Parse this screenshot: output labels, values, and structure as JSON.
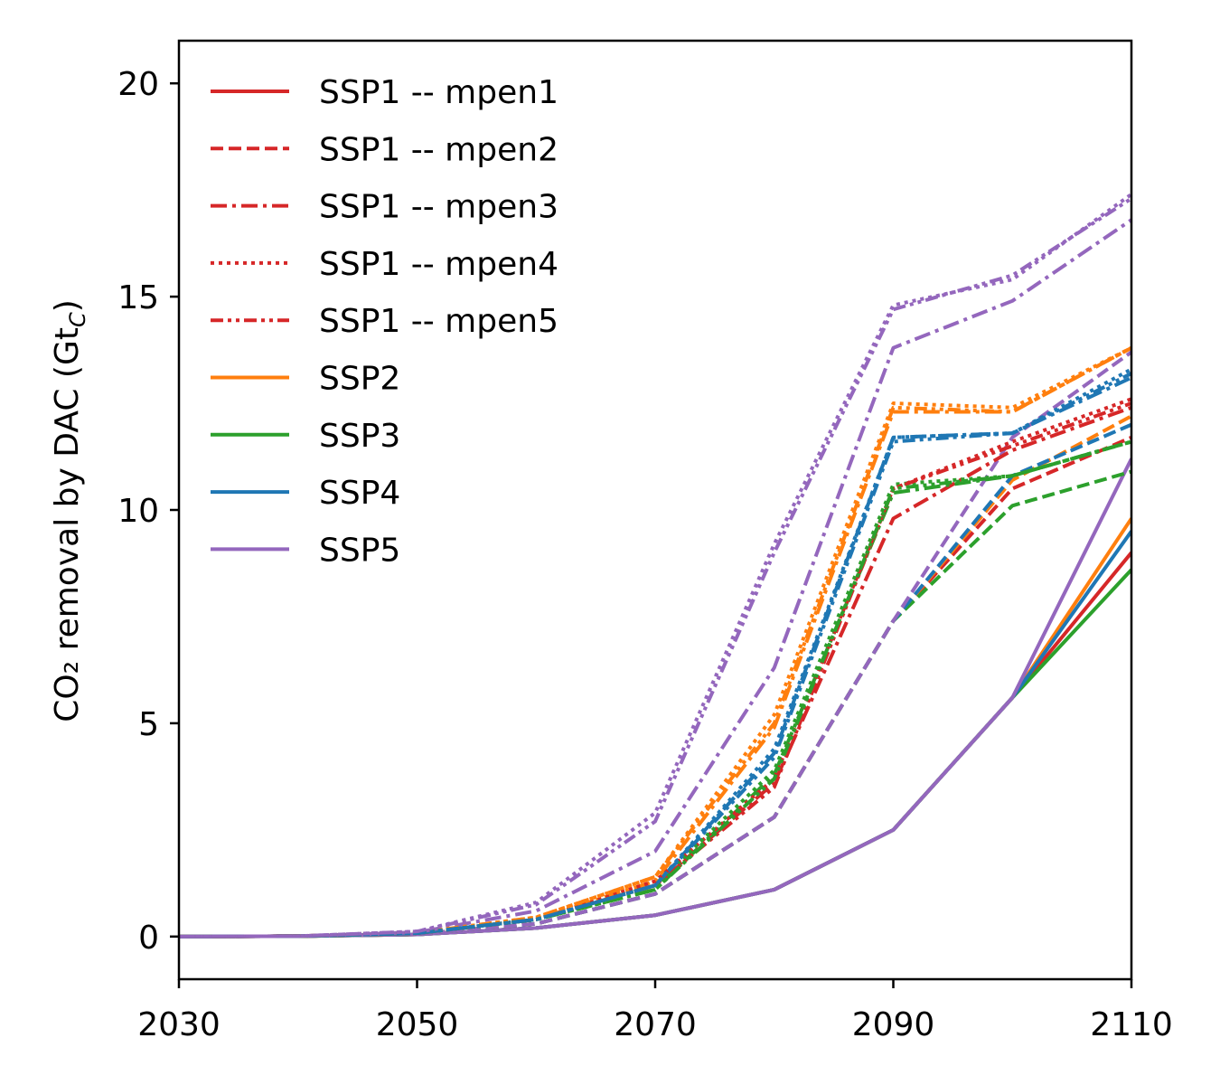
{
  "chart_data": {
    "type": "line",
    "title": "",
    "xlabel": "",
    "ylabel": "CO₂ removal by DAC (Gt",
    "ylabel_sub": "C",
    "ylabel_close": ")",
    "xlim": [
      2030,
      2110
    ],
    "ylim": [
      -1,
      21
    ],
    "xticks": [
      2030,
      2050,
      2070,
      2090,
      2110
    ],
    "yticks": [
      0,
      5,
      10,
      15,
      20
    ],
    "x": [
      2030,
      2040,
      2050,
      2060,
      2070,
      2080,
      2090,
      2100,
      2110
    ],
    "grid": false,
    "legend_position": "top-left",
    "colors": {
      "SSP1": "#d62728",
      "SSP2": "#ff7f0e",
      "SSP3": "#2ca02c",
      "SSP4": "#1f77b4",
      "SSP5": "#9467bd"
    },
    "legend": [
      {
        "label": "SSP1 -- mpen1",
        "color": "#d62728",
        "style": "solid"
      },
      {
        "label": "SSP1 -- mpen2",
        "color": "#d62728",
        "style": "dashed"
      },
      {
        "label": "SSP1 -- mpen3",
        "color": "#d62728",
        "style": "dashdot"
      },
      {
        "label": "SSP1 -- mpen4",
        "color": "#d62728",
        "style": "dotted"
      },
      {
        "label": "SSP1 -- mpen5",
        "color": "#d62728",
        "style": "dashdotdot"
      },
      {
        "label": "SSP2",
        "color": "#ff7f0e",
        "style": "solid"
      },
      {
        "label": "SSP3",
        "color": "#2ca02c",
        "style": "solid"
      },
      {
        "label": "SSP4",
        "color": "#1f77b4",
        "style": "solid"
      },
      {
        "label": "SSP5",
        "color": "#9467bd",
        "style": "solid"
      }
    ],
    "series": [
      {
        "group": "SSP1",
        "style": "solid",
        "values": [
          0,
          0.01,
          0.05,
          0.2,
          0.5,
          1.1,
          2.5,
          5.6,
          9.0
        ]
      },
      {
        "group": "SSP2",
        "style": "solid",
        "values": [
          0,
          0.01,
          0.05,
          0.2,
          0.5,
          1.1,
          2.5,
          5.6,
          9.8
        ]
      },
      {
        "group": "SSP3",
        "style": "solid",
        "values": [
          0,
          0.01,
          0.05,
          0.2,
          0.5,
          1.1,
          2.5,
          5.6,
          8.6
        ]
      },
      {
        "group": "SSP4",
        "style": "solid",
        "values": [
          0,
          0.01,
          0.05,
          0.2,
          0.5,
          1.1,
          2.5,
          5.6,
          9.5
        ]
      },
      {
        "group": "SSP5",
        "style": "solid",
        "values": [
          0,
          0.01,
          0.05,
          0.2,
          0.5,
          1.1,
          2.5,
          5.6,
          11.2
        ]
      },
      {
        "group": "SSP1",
        "style": "dashed",
        "values": [
          0,
          0.01,
          0.06,
          0.3,
          1.0,
          2.8,
          7.4,
          10.5,
          11.7
        ]
      },
      {
        "group": "SSP2",
        "style": "dashed",
        "values": [
          0,
          0.01,
          0.06,
          0.3,
          1.0,
          2.8,
          7.4,
          10.7,
          12.2
        ]
      },
      {
        "group": "SSP3",
        "style": "dashed",
        "values": [
          0,
          0.01,
          0.06,
          0.3,
          1.0,
          2.8,
          7.4,
          10.1,
          10.9
        ]
      },
      {
        "group": "SSP4",
        "style": "dashed",
        "values": [
          0,
          0.01,
          0.06,
          0.3,
          1.0,
          2.8,
          7.4,
          10.8,
          12.0
        ]
      },
      {
        "group": "SSP5",
        "style": "dashed",
        "values": [
          0,
          0.01,
          0.06,
          0.3,
          1.0,
          2.8,
          7.4,
          11.7,
          13.7
        ]
      },
      {
        "group": "SSP1",
        "style": "dashdot",
        "values": [
          0,
          0.01,
          0.08,
          0.4,
          1.2,
          3.6,
          9.8,
          11.4,
          12.4
        ]
      },
      {
        "group": "SSP2",
        "style": "dashdot",
        "values": [
          0,
          0.01,
          0.08,
          0.4,
          1.3,
          4.9,
          12.3,
          12.3,
          13.8
        ]
      },
      {
        "group": "SSP3",
        "style": "dashdot",
        "values": [
          0,
          0.01,
          0.08,
          0.4,
          1.1,
          3.8,
          10.4,
          10.8,
          11.6
        ]
      },
      {
        "group": "SSP4",
        "style": "dashdot",
        "values": [
          0,
          0.01,
          0.08,
          0.4,
          1.2,
          4.3,
          11.7,
          11.8,
          13.1
        ]
      },
      {
        "group": "SSP5",
        "style": "dashdot",
        "values": [
          0,
          0.01,
          0.1,
          0.6,
          2.0,
          6.3,
          13.8,
          14.9,
          16.8
        ]
      },
      {
        "group": "SSP1",
        "style": "dotted",
        "values": [
          0,
          0.01,
          0.08,
          0.4,
          1.3,
          3.7,
          10.5,
          11.6,
          12.6
        ]
      },
      {
        "group": "SSP2",
        "style": "dotted",
        "values": [
          0,
          0.01,
          0.09,
          0.45,
          1.4,
          5.2,
          12.5,
          12.4,
          13.8
        ]
      },
      {
        "group": "SSP3",
        "style": "dotted",
        "values": [
          0,
          0.01,
          0.08,
          0.4,
          1.2,
          3.9,
          10.6,
          10.8,
          11.6
        ]
      },
      {
        "group": "SSP4",
        "style": "dotted",
        "values": [
          0,
          0.01,
          0.08,
          0.4,
          1.2,
          4.4,
          11.7,
          11.8,
          13.3
        ]
      },
      {
        "group": "SSP5",
        "style": "dotted",
        "values": [
          0,
          0.01,
          0.12,
          0.8,
          2.9,
          9.2,
          14.8,
          15.4,
          17.4
        ]
      },
      {
        "group": "SSP1",
        "style": "dashdotdot",
        "values": [
          0,
          0.01,
          0.08,
          0.4,
          1.2,
          3.5,
          10.5,
          11.5,
          12.5
        ]
      },
      {
        "group": "SSP2",
        "style": "dashdotdot",
        "values": [
          0,
          0.01,
          0.09,
          0.45,
          1.4,
          5.0,
          12.4,
          12.3,
          13.8
        ]
      },
      {
        "group": "SSP3",
        "style": "dashdotdot",
        "values": [
          0,
          0.01,
          0.08,
          0.4,
          1.1,
          3.7,
          10.5,
          10.8,
          11.6
        ]
      },
      {
        "group": "SSP4",
        "style": "dashdotdot",
        "values": [
          0,
          0.01,
          0.08,
          0.4,
          1.2,
          4.2,
          11.6,
          11.8,
          13.2
        ]
      },
      {
        "group": "SSP5",
        "style": "dashdotdot",
        "values": [
          0,
          0.01,
          0.12,
          0.75,
          2.7,
          9.0,
          14.7,
          15.5,
          17.3
        ]
      }
    ]
  }
}
